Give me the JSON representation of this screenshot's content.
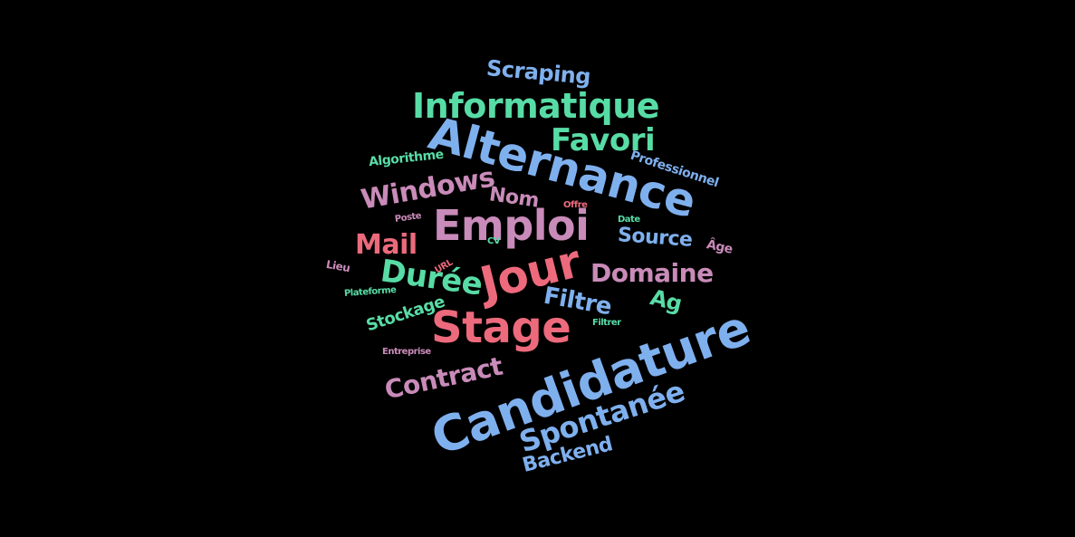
{
  "words": {
    "scraping": "Scraping",
    "informatique": "Informatique",
    "alternance": "Alternance",
    "favori": "Favori",
    "algorithme": "Algorithme",
    "professionnel": "Professionnel",
    "windows": "Windows",
    "nom": "Nom",
    "emploi": "Emploi",
    "mail": "Mail",
    "source": "Source",
    "age": "Âge",
    "jour": "Jour",
    "duree": "Durée",
    "domaine": "Domaine",
    "filtre": "Filtre",
    "ag": "Ag",
    "stage": "Stage",
    "stockage": "Stockage",
    "candidature": "Candidature",
    "spontanee": "Spontanée",
    "contract": "Contract",
    "backend": "Backend",
    "cv": "CV",
    "url": "URL",
    "lieu": "Lieu",
    "plateforme": "Plateforme",
    "filtrer": "Filtrer",
    "date": "Date",
    "offre": "Offre",
    "poste": "Poste",
    "entreprise": "Entreprise"
  },
  "colors": {
    "blue": "#7fb0ee",
    "green": "#58dca6",
    "pink": "#c98bb9",
    "red": "#ec6a7c",
    "background": "#000000"
  }
}
